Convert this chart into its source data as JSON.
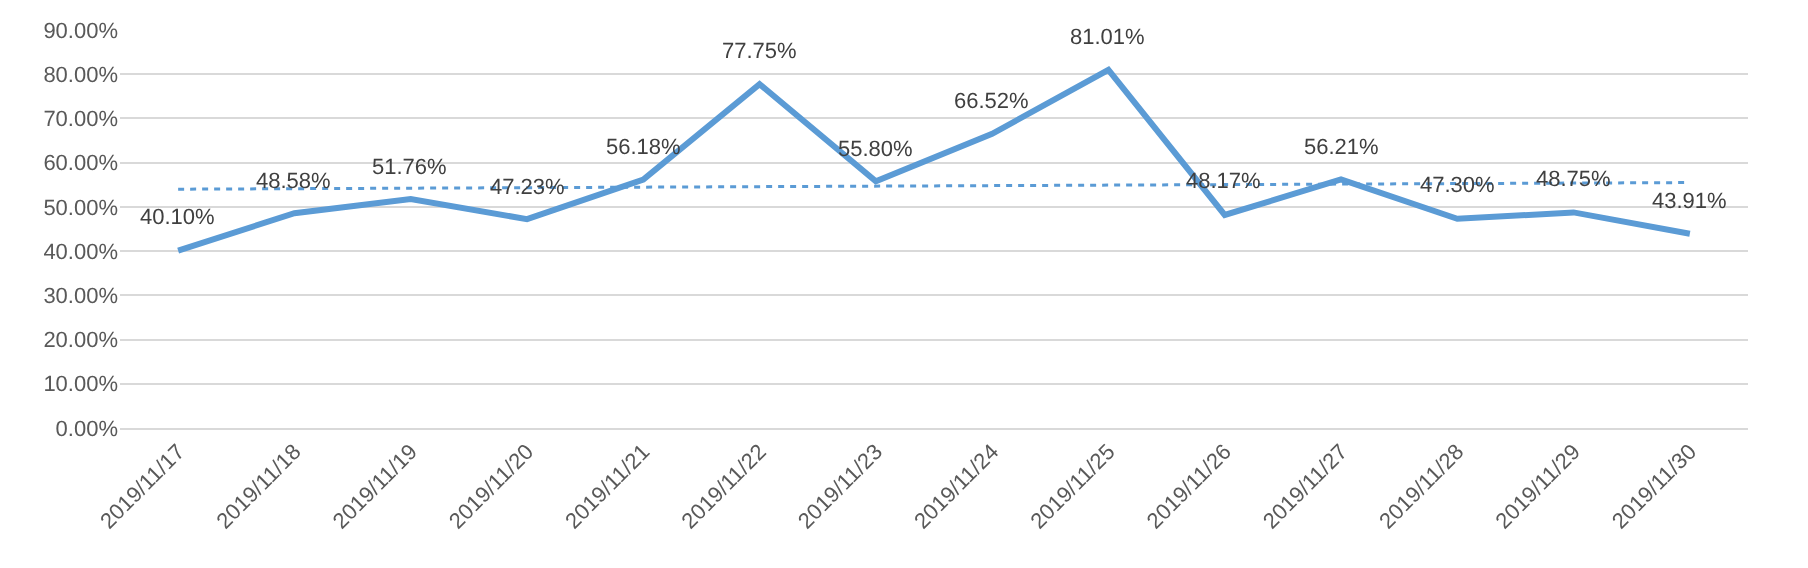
{
  "chart_data": {
    "type": "line",
    "categories": [
      "2019/11/17",
      "2019/11/18",
      "2019/11/19",
      "2019/11/20",
      "2019/11/21",
      "2019/11/22",
      "2019/11/23",
      "2019/11/24",
      "2019/11/25",
      "2019/11/26",
      "2019/11/27",
      "2019/11/28",
      "2019/11/29",
      "2019/11/30"
    ],
    "series": [
      {
        "color": "#5b9bd5",
        "values": [
          40.1,
          48.58,
          51.76,
          47.23,
          56.18,
          77.75,
          55.8,
          66.52,
          81.01,
          48.17,
          56.21,
          47.3,
          48.75,
          43.91
        ],
        "value_labels": [
          "40.10%",
          "48.58%",
          "51.76%",
          "47.23%",
          "56.18%",
          "77.75%",
          "55.80%",
          "66.52%",
          "81.01%",
          "48.17%",
          "56.21%",
          "47.30%",
          "48.75%",
          "43.91%"
        ],
        "line_style": "solid"
      },
      {
        "type": "line",
        "color": "#5b9bd5",
        "x": [
          "2019/11/17",
          "2019/11/30"
        ],
        "values": [
          54.0,
          55.5
        ],
        "line_style": "dotted"
      }
    ],
    "ylim": [
      0,
      90
    ],
    "yticks": [
      {
        "value": 0,
        "label": "0.00%"
      },
      {
        "value": 10,
        "label": "10.00%"
      },
      {
        "value": 20,
        "label": "20.00%"
      },
      {
        "value": 30,
        "label": "30.00%"
      },
      {
        "value": 40,
        "label": "40.00%"
      },
      {
        "value": 50,
        "label": "50.00%"
      },
      {
        "value": 60,
        "label": "60.00%"
      },
      {
        "value": 70,
        "label": "70.00%"
      },
      {
        "value": 80,
        "label": "80.00%"
      },
      {
        "value": 90,
        "label": "90.00%"
      }
    ],
    "grid": "y",
    "marker": "none"
  }
}
